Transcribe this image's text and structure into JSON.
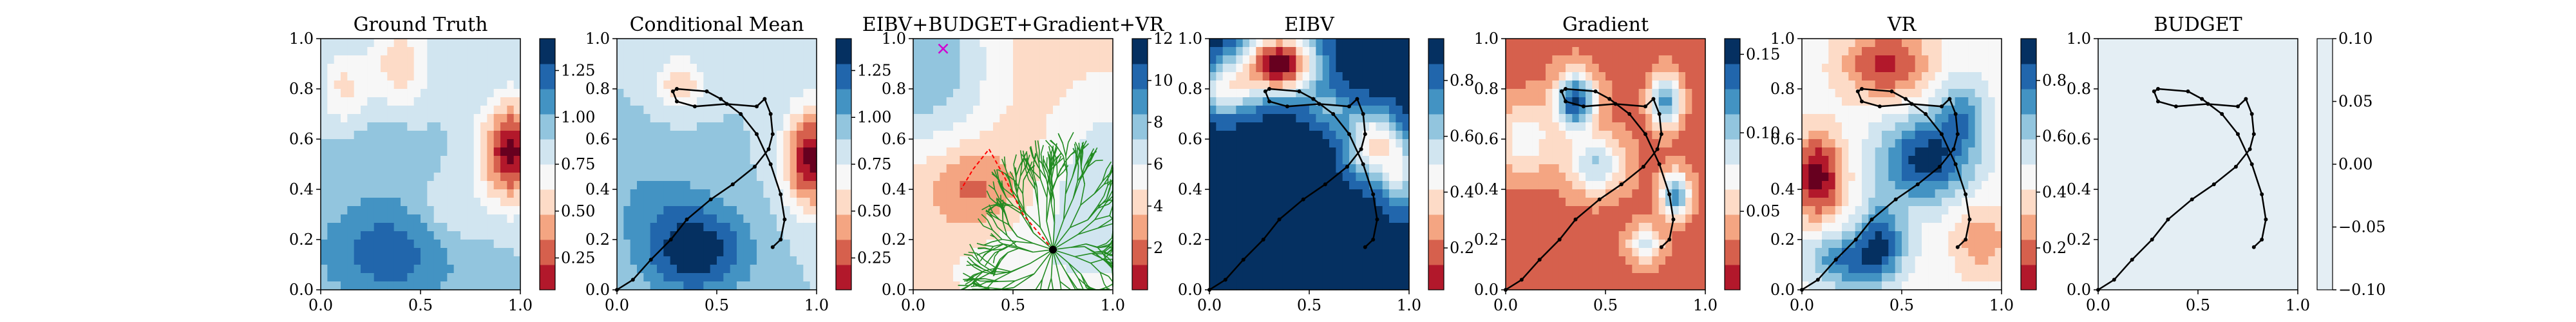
{
  "colors": {
    "rdbu": [
      "#67001f",
      "#b2182b",
      "#d6604d",
      "#f4a582",
      "#fddbc7",
      "#f7f7f7",
      "#d1e5f0",
      "#92c5de",
      "#4393c3",
      "#2166ac",
      "#053061"
    ],
    "path": "#000000",
    "tree": "#228b22",
    "tree_highlight": "#ff0000",
    "marker": "#d000d0"
  },
  "chart_data": [
    {
      "type": "heatmap",
      "id": "ground-truth",
      "title": "Ground Truth",
      "xlim": [
        0,
        1
      ],
      "ylim": [
        0,
        1
      ],
      "xticks": [
        "0.0",
        "0.5",
        "1.0"
      ],
      "yticks": [
        "0.0",
        "0.2",
        "0.4",
        "0.6",
        "0.8",
        "1.0"
      ],
      "colorbar": {
        "min": 0.08,
        "max": 1.42,
        "ticks": [
          "0.25",
          "0.50",
          "0.75",
          "1.00",
          "1.25"
        ],
        "tick_values": [
          0.25,
          0.5,
          0.75,
          1.0,
          1.25
        ]
      },
      "field": {
        "base": 0.95,
        "bumps": [
          {
            "x": 0.95,
            "y": 0.55,
            "amp": -0.85,
            "sx": 0.1,
            "sy": 0.14
          },
          {
            "x": 0.4,
            "y": 0.9,
            "amp": -0.38,
            "sx": 0.1,
            "sy": 0.12
          },
          {
            "x": 0.12,
            "y": 0.8,
            "amp": -0.3,
            "sx": 0.08,
            "sy": 0.1
          },
          {
            "x": 0.65,
            "y": 0.3,
            "amp": -0.18,
            "sx": 0.12,
            "sy": 0.1
          },
          {
            "x": 0.35,
            "y": 0.15,
            "amp": 0.35,
            "sx": 0.25,
            "sy": 0.15
          },
          {
            "x": 0.3,
            "y": 0.55,
            "amp": 0.1,
            "sx": 0.15,
            "sy": 0.1
          }
        ]
      },
      "path": null
    },
    {
      "type": "heatmap",
      "id": "conditional-mean",
      "title": "Conditional Mean",
      "xlim": [
        0,
        1
      ],
      "ylim": [
        0,
        1
      ],
      "xticks": [
        "0.0",
        "0.5",
        "1.0"
      ],
      "yticks": [
        "0.0",
        "0.2",
        "0.4",
        "0.6",
        "0.8",
        "1.0"
      ],
      "colorbar": {
        "min": 0.08,
        "max": 1.42,
        "ticks": [
          "0.25",
          "0.50",
          "0.75",
          "1.00",
          "1.25"
        ],
        "tick_values": [
          0.25,
          0.5,
          0.75,
          1.0,
          1.25
        ]
      },
      "field": {
        "base": 0.95,
        "bumps": [
          {
            "x": 0.97,
            "y": 0.52,
            "amp": -0.85,
            "sx": 0.09,
            "sy": 0.14
          },
          {
            "x": 0.32,
            "y": 0.82,
            "amp": -0.4,
            "sx": 0.08,
            "sy": 0.07
          },
          {
            "x": 0.4,
            "y": 0.15,
            "amp": 0.5,
            "sx": 0.18,
            "sy": 0.12
          },
          {
            "x": 0.2,
            "y": 0.35,
            "amp": 0.15,
            "sx": 0.2,
            "sy": 0.15
          }
        ]
      },
      "path": "main"
    },
    {
      "type": "heatmap",
      "id": "eibv-budget-gradient-vr",
      "title": "EIBV+BUDGET+Gradient+VR",
      "xlim": [
        0,
        1
      ],
      "ylim": [
        0,
        1
      ],
      "xticks": [
        "0.0",
        "0.5",
        "1.0"
      ],
      "yticks": [
        "0.0",
        "0.2",
        "0.4",
        "0.6",
        "0.8",
        "1.0"
      ],
      "colorbar": {
        "min": 0,
        "max": 12,
        "ticks": [
          "2",
          "4",
          "6",
          "8",
          "10",
          "12"
        ],
        "tick_values": [
          2,
          4,
          6,
          8,
          10,
          12
        ]
      },
      "field": {
        "base": 4.5,
        "bumps": [
          {
            "x": 0.05,
            "y": 0.9,
            "amp": 4.5,
            "sx": 0.25,
            "sy": 0.25
          },
          {
            "x": 0.95,
            "y": 0.4,
            "amp": 3.0,
            "sx": 0.2,
            "sy": 0.3
          },
          {
            "x": 0.3,
            "y": 0.4,
            "amp": -2.5,
            "sx": 0.15,
            "sy": 0.12
          },
          {
            "x": 0.5,
            "y": 0.1,
            "amp": 1.5,
            "sx": 0.3,
            "sy": 0.2
          }
        ]
      },
      "path": "tree"
    },
    {
      "type": "heatmap",
      "id": "eibv",
      "title": "EIBV",
      "xlim": [
        0,
        1
      ],
      "ylim": [
        0,
        1
      ],
      "xticks": [
        "0.0",
        "0.5",
        "1.0"
      ],
      "yticks": [
        "0.0",
        "0.2",
        "0.4",
        "0.6",
        "0.8",
        "1.0"
      ],
      "colorbar": {
        "min": 0.05,
        "max": 0.95,
        "ticks": [
          "0.2",
          "0.4",
          "0.6",
          "0.8"
        ],
        "tick_values": [
          0.2,
          0.4,
          0.6,
          0.8
        ]
      },
      "field": {
        "base": 0.98,
        "bumps": [
          {
            "x": 0.35,
            "y": 0.9,
            "amp": -0.95,
            "sx": 0.13,
            "sy": 0.09
          },
          {
            "x": 0.82,
            "y": 0.58,
            "amp": -0.55,
            "sx": 0.1,
            "sy": 0.1
          },
          {
            "x": 0.08,
            "y": 0.8,
            "amp": -0.45,
            "sx": 0.1,
            "sy": 0.08
          },
          {
            "x": 0.95,
            "y": 0.45,
            "amp": -0.35,
            "sx": 0.06,
            "sy": 0.1
          },
          {
            "x": 0.6,
            "y": 0.72,
            "amp": -0.25,
            "sx": 0.08,
            "sy": 0.06
          }
        ]
      },
      "path": "main"
    },
    {
      "type": "heatmap",
      "id": "gradient",
      "title": "Gradient",
      "xlim": [
        0,
        1
      ],
      "ylim": [
        0,
        1
      ],
      "xticks": [
        "0.0",
        "0.5",
        "1.0"
      ],
      "yticks": [
        "0.0",
        "0.2",
        "0.4",
        "0.6",
        "0.8",
        "1.0"
      ],
      "colorbar": {
        "min": 0.0,
        "max": 0.16,
        "ticks": [
          "0.05",
          "0.10",
          "0.15"
        ],
        "tick_values": [
          0.05,
          0.1,
          0.15
        ]
      },
      "field": {
        "base": 0.035,
        "bumps": [
          {
            "x": 0.35,
            "y": 0.75,
            "amp": 0.12,
            "sx": 0.07,
            "sy": 0.08
          },
          {
            "x": 0.8,
            "y": 0.75,
            "amp": 0.1,
            "sx": 0.05,
            "sy": 0.07
          },
          {
            "x": 0.85,
            "y": 0.38,
            "amp": 0.1,
            "sx": 0.05,
            "sy": 0.06
          },
          {
            "x": 0.45,
            "y": 0.5,
            "amp": 0.07,
            "sx": 0.1,
            "sy": 0.08
          },
          {
            "x": 0.7,
            "y": 0.18,
            "amp": 0.06,
            "sx": 0.06,
            "sy": 0.05
          },
          {
            "x": 0.1,
            "y": 0.6,
            "amp": 0.05,
            "sx": 0.1,
            "sy": 0.1
          }
        ]
      },
      "path": "main"
    },
    {
      "type": "heatmap",
      "id": "vr",
      "title": "VR",
      "xlim": [
        0,
        1
      ],
      "ylim": [
        0,
        1
      ],
      "xticks": [
        "0.0",
        "0.5",
        "1.0"
      ],
      "yticks": [
        "0.0",
        "0.2",
        "0.4",
        "0.6",
        "0.8",
        "1.0"
      ],
      "colorbar": {
        "min": 0.05,
        "max": 0.95,
        "ticks": [
          "0.2",
          "0.4",
          "0.6",
          "0.8"
        ],
        "tick_values": [
          0.2,
          0.4,
          0.6,
          0.8
        ]
      },
      "field": {
        "base": 0.5,
        "bumps": [
          {
            "x": 0.08,
            "y": 0.45,
            "amp": -0.45,
            "sx": 0.09,
            "sy": 0.12
          },
          {
            "x": 0.42,
            "y": 0.9,
            "amp": -0.35,
            "sx": 0.15,
            "sy": 0.1
          },
          {
            "x": 0.62,
            "y": 0.52,
            "amp": 0.45,
            "sx": 0.16,
            "sy": 0.12
          },
          {
            "x": 0.4,
            "y": 0.22,
            "amp": 0.3,
            "sx": 0.08,
            "sy": 0.1
          },
          {
            "x": 0.25,
            "y": 0.12,
            "amp": 0.35,
            "sx": 0.15,
            "sy": 0.08
          },
          {
            "x": 0.8,
            "y": 0.7,
            "amp": 0.25,
            "sx": 0.08,
            "sy": 0.1
          },
          {
            "x": 0.9,
            "y": 0.2,
            "amp": -0.2,
            "sx": 0.1,
            "sy": 0.1
          }
        ]
      },
      "path": "main"
    },
    {
      "type": "heatmap",
      "id": "budget",
      "title": "BUDGET",
      "xlim": [
        0,
        1
      ],
      "ylim": [
        0,
        1
      ],
      "xticks": [
        "0.0",
        "0.5",
        "1.0"
      ],
      "yticks": [
        "0.0",
        "0.2",
        "0.4",
        "0.6",
        "0.8",
        "1.0"
      ],
      "colorbar": {
        "min": -0.1,
        "max": 0.1,
        "ticks": [
          "0.10",
          "0.05",
          "0.00",
          "−0.05",
          "−0.10"
        ],
        "tick_values": [
          0.1,
          0.05,
          0.0,
          -0.05,
          -0.1
        ]
      },
      "field": {
        "base": 0.0,
        "bumps": []
      },
      "path": "main"
    }
  ],
  "paths": {
    "main": [
      [
        0.0,
        0.0
      ],
      [
        0.08,
        0.04
      ],
      [
        0.17,
        0.12
      ],
      [
        0.27,
        0.2
      ],
      [
        0.35,
        0.28
      ],
      [
        0.47,
        0.36
      ],
      [
        0.58,
        0.42
      ],
      [
        0.69,
        0.49
      ],
      [
        0.76,
        0.56
      ],
      [
        0.78,
        0.62
      ],
      [
        0.77,
        0.7
      ],
      [
        0.74,
        0.76
      ],
      [
        0.7,
        0.73
      ],
      [
        0.55,
        0.74
      ],
      [
        0.39,
        0.73
      ],
      [
        0.3,
        0.75
      ],
      [
        0.28,
        0.79
      ],
      [
        0.3,
        0.8
      ],
      [
        0.45,
        0.79
      ],
      [
        0.52,
        0.76
      ],
      [
        0.62,
        0.7
      ],
      [
        0.7,
        0.62
      ],
      [
        0.77,
        0.5
      ],
      [
        0.82,
        0.38
      ],
      [
        0.84,
        0.28
      ],
      [
        0.82,
        0.2
      ],
      [
        0.78,
        0.17
      ]
    ],
    "tree_root": [
      0.7,
      0.16
    ]
  }
}
